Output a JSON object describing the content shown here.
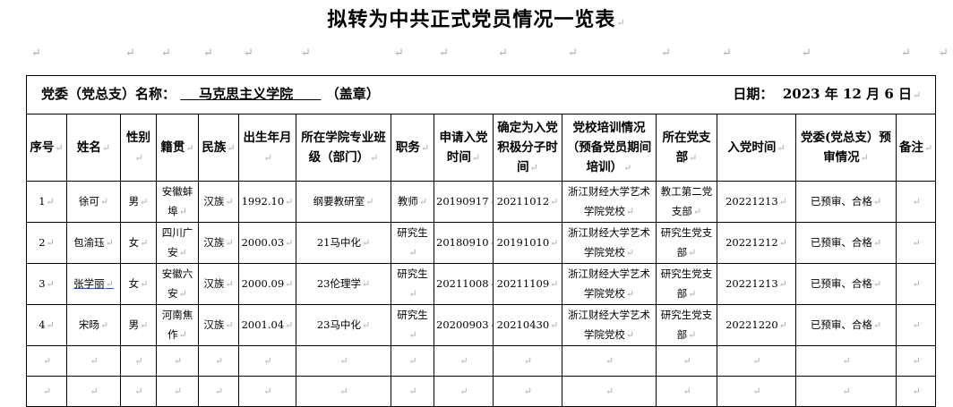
{
  "title": "拟转为中共正式党员情况一览表",
  "header": {
    "committee_label": "党委（党总支）名称：",
    "committee_name": "马克思主义学院",
    "seal": "（盖章）",
    "date_label": "日期：",
    "date_value": "2023 年 12 月 6 日"
  },
  "columns": [
    "序号",
    "姓名",
    "性别",
    "籍贯",
    "民族",
    "出生年月",
    "所在学院专业班级（部门）",
    "职务",
    "申请入党时间",
    "确定为入党积极分子时间",
    "党校培训情况（预备党员期间培训）",
    "所在党支部",
    "入党时间",
    "党委(党总支）预审情况",
    "备注"
  ],
  "rows": [
    [
      "1",
      "徐可",
      "男",
      "安徽蚌埠",
      "汉族",
      "1992.10",
      "纲要教研室",
      "教师",
      "20190917",
      "20211012",
      "浙江财经大学艺术学院党校",
      "教工第二党支部",
      "20221213",
      "已预审、合格",
      ""
    ],
    [
      "2",
      "包渝珏",
      "女",
      "四川广安",
      "汉族",
      "2000.03",
      "21马中化",
      "研究生",
      "20180910",
      "20191010",
      "浙江财经大学艺术学院党校",
      "研究生党支部",
      "20221212",
      "已预审、合格",
      ""
    ],
    [
      "3",
      "张学丽",
      "女",
      "安徽六安",
      "汉族",
      "2000.09",
      "23伦理学",
      "研究生",
      "20211008",
      "20211109",
      "浙江财经大学艺术学院党校",
      "研究生党支部",
      "20221213",
      "已预审、合格",
      ""
    ],
    [
      "4",
      "宋旸",
      "男",
      "河南焦作",
      "汉族",
      "2001.04",
      "23马中化",
      "研究生",
      "20200903",
      "20210430",
      "浙江财经大学艺术学院党校",
      "研究生党支部",
      "20221220",
      "已预审、合格",
      ""
    ]
  ],
  "empty_rows": 2
}
